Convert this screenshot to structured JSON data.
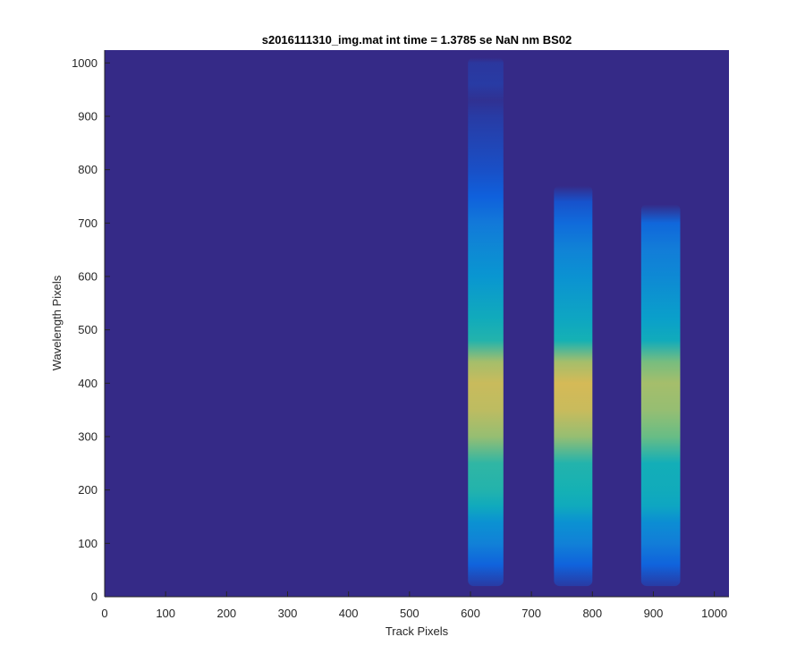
{
  "chart_data": {
    "type": "heatmap",
    "title": "s2016111310_img.mat int time = 1.3785 se  NaN nm BS02",
    "xlabel": "Track Pixels",
    "ylabel": "Wavelength Pixels",
    "xlim": [
      0,
      1024
    ],
    "ylim": [
      0,
      1024
    ],
    "x_ticks": [
      0,
      100,
      200,
      300,
      400,
      500,
      600,
      700,
      800,
      900,
      1000
    ],
    "y_ticks": [
      0,
      100,
      200,
      300,
      400,
      500,
      600,
      700,
      800,
      900,
      1000
    ],
    "colormap": "parula",
    "background_color": "#352a87",
    "grid": false,
    "legend": "none",
    "bands": [
      {
        "x_range": [
          596,
          654
        ],
        "y_range": [
          20,
          1010
        ],
        "profile": [
          [
            20,
            0.05
          ],
          [
            60,
            0.18
          ],
          [
            100,
            0.32
          ],
          [
            140,
            0.4
          ],
          [
            170,
            0.55
          ],
          [
            200,
            0.62
          ],
          [
            250,
            0.64
          ],
          [
            300,
            0.78
          ],
          [
            350,
            0.84
          ],
          [
            400,
            0.86
          ],
          [
            440,
            0.8
          ],
          [
            480,
            0.62
          ],
          [
            520,
            0.56
          ],
          [
            600,
            0.42
          ],
          [
            650,
            0.36
          ],
          [
            700,
            0.28
          ],
          [
            750,
            0.17
          ],
          [
            800,
            0.11
          ],
          [
            850,
            0.08
          ],
          [
            900,
            0.05
          ],
          [
            930,
            0.02
          ],
          [
            960,
            0.05
          ],
          [
            1000,
            0.04
          ],
          [
            1010,
            0.0
          ]
        ]
      },
      {
        "x_range": [
          737,
          800
        ],
        "y_range": [
          20,
          770
        ],
        "profile": [
          [
            20,
            0.05
          ],
          [
            60,
            0.18
          ],
          [
            100,
            0.32
          ],
          [
            140,
            0.4
          ],
          [
            170,
            0.55
          ],
          [
            200,
            0.6
          ],
          [
            250,
            0.62
          ],
          [
            300,
            0.78
          ],
          [
            350,
            0.86
          ],
          [
            400,
            0.88
          ],
          [
            440,
            0.8
          ],
          [
            480,
            0.6
          ],
          [
            520,
            0.52
          ],
          [
            600,
            0.4
          ],
          [
            650,
            0.33
          ],
          [
            700,
            0.22
          ],
          [
            740,
            0.12
          ],
          [
            770,
            0.0
          ]
        ]
      },
      {
        "x_range": [
          880,
          944
        ],
        "y_range": [
          20,
          735
        ],
        "profile": [
          [
            20,
            0.05
          ],
          [
            60,
            0.18
          ],
          [
            100,
            0.3
          ],
          [
            140,
            0.38
          ],
          [
            170,
            0.52
          ],
          [
            200,
            0.56
          ],
          [
            250,
            0.58
          ],
          [
            300,
            0.72
          ],
          [
            350,
            0.78
          ],
          [
            400,
            0.8
          ],
          [
            440,
            0.74
          ],
          [
            480,
            0.56
          ],
          [
            520,
            0.48
          ],
          [
            600,
            0.36
          ],
          [
            650,
            0.3
          ],
          [
            700,
            0.2
          ],
          [
            735,
            0.0
          ]
        ]
      }
    ]
  }
}
